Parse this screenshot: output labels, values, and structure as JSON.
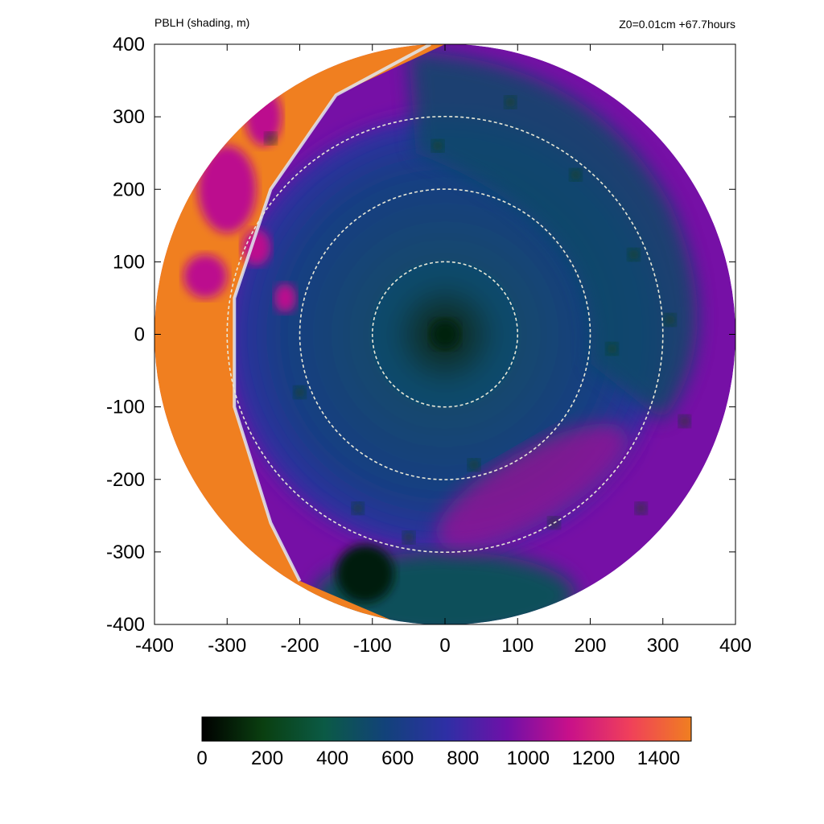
{
  "header": {
    "left_title": "PBLH (shading, m)",
    "right_title": "Z0=0.01cm  +67.7hours"
  },
  "chart_data": {
    "type": "heatmap",
    "title": "PBLH (shading, m)",
    "subtitle": "Z0=0.01cm  +67.7hours",
    "xlabel": "",
    "ylabel": "",
    "xlim": [
      -400,
      400
    ],
    "ylim": [
      -400,
      400
    ],
    "x_ticks": [
      -400,
      -300,
      -200,
      -100,
      0,
      100,
      200,
      300,
      400
    ],
    "y_ticks": [
      -400,
      -300,
      -200,
      -100,
      0,
      100,
      200,
      300,
      400
    ],
    "domain_radius": 400,
    "range_rings": [
      100,
      200,
      300
    ],
    "colorbar": {
      "min": 0,
      "max": 1500,
      "ticks": [
        0,
        200,
        400,
        600,
        800,
        1000,
        1200,
        1400
      ],
      "stops": [
        "#000000",
        "#0a3f10",
        "#0b5a45",
        "#12427a",
        "#2e2fa5",
        "#7010a8",
        "#c8108a",
        "#f0405a",
        "#f07f20"
      ]
    },
    "pblh_field": {
      "eye_center": [
        0,
        0
      ],
      "eye_value": 100,
      "inner_core_value": 500,
      "outer_band_value": 950,
      "west_sector_value": 1500,
      "front_curve": [
        [
          0,
          400
        ],
        [
          -150,
          330
        ],
        [
          -240,
          200
        ],
        [
          -290,
          50
        ],
        [
          -290,
          -100
        ],
        [
          -240,
          -260
        ],
        [
          -200,
          -340
        ]
      ]
    }
  }
}
